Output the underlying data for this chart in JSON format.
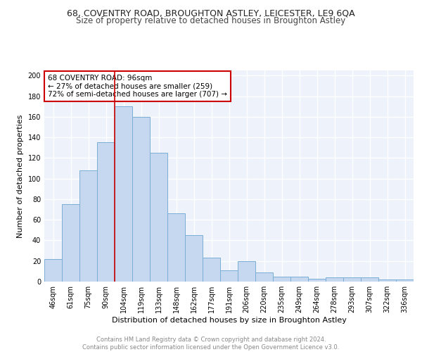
{
  "title1": "68, COVENTRY ROAD, BROUGHTON ASTLEY, LEICESTER, LE9 6QA",
  "title2": "Size of property relative to detached houses in Broughton Astley",
  "xlabel": "Distribution of detached houses by size in Broughton Astley",
  "ylabel": "Number of detached properties",
  "categories": [
    "46sqm",
    "61sqm",
    "75sqm",
    "90sqm",
    "104sqm",
    "119sqm",
    "133sqm",
    "148sqm",
    "162sqm",
    "177sqm",
    "191sqm",
    "206sqm",
    "220sqm",
    "235sqm",
    "249sqm",
    "264sqm",
    "278sqm",
    "293sqm",
    "307sqm",
    "322sqm",
    "336sqm"
  ],
  "values": [
    22,
    75,
    108,
    135,
    170,
    160,
    125,
    66,
    45,
    23,
    11,
    20,
    9,
    5,
    5,
    3,
    4,
    4,
    4,
    2,
    2
  ],
  "bar_color": "#c5d8f0",
  "bar_edge_color": "#7badd4",
  "vline_x": 3.5,
  "annotation_text": "68 COVENTRY ROAD: 96sqm\n← 27% of detached houses are smaller (259)\n72% of semi-detached houses are larger (707) →",
  "annotation_box_color": "#ffffff",
  "annotation_border_color": "#cc0000",
  "ylim": [
    0,
    205
  ],
  "yticks": [
    0,
    20,
    40,
    60,
    80,
    100,
    120,
    140,
    160,
    180,
    200
  ],
  "footer": "Contains HM Land Registry data © Crown copyright and database right 2024.\nContains public sector information licensed under the Open Government Licence v3.0.",
  "background_color": "#edf2fb",
  "grid_color": "#ffffff",
  "title1_fontsize": 9,
  "title2_fontsize": 8.5,
  "xlabel_fontsize": 8,
  "ylabel_fontsize": 8,
  "tick_fontsize": 7,
  "annotation_fontsize": 7.5,
  "footer_fontsize": 6
}
